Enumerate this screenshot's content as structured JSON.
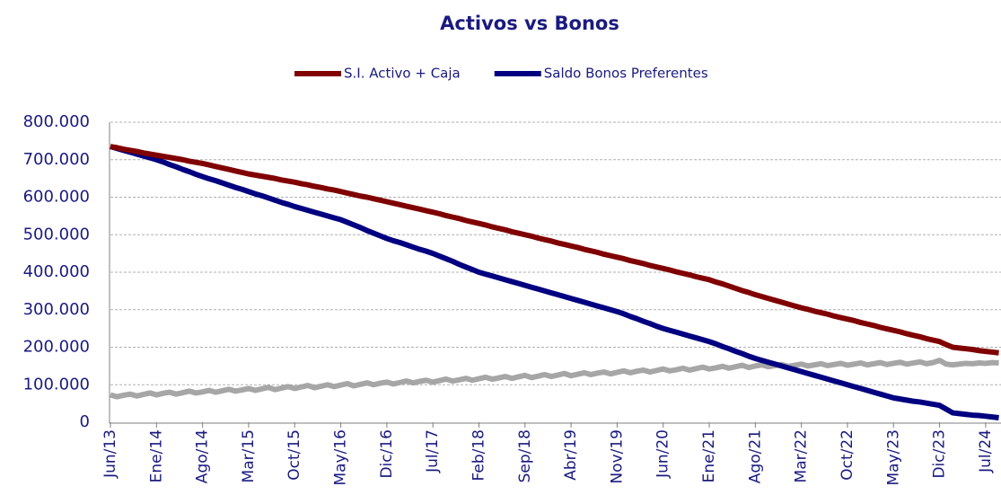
{
  "chart_data": {
    "type": "line",
    "title": "Activos vs Bonos",
    "categories": [
      "Jun/13",
      null,
      null,
      null,
      null,
      null,
      null,
      "Ene/14",
      null,
      null,
      null,
      null,
      null,
      null,
      "Ago/14",
      null,
      null,
      null,
      null,
      null,
      null,
      "Mar/15",
      null,
      null,
      null,
      null,
      null,
      null,
      "Oct/15",
      null,
      null,
      null,
      null,
      null,
      null,
      "May/16",
      null,
      null,
      null,
      null,
      null,
      null,
      "Dic/16",
      null,
      null,
      null,
      null,
      null,
      null,
      "Jul/17",
      null,
      null,
      null,
      null,
      null,
      null,
      "Feb/18",
      null,
      null,
      null,
      null,
      null,
      null,
      "Sep/18",
      null,
      null,
      null,
      null,
      null,
      null,
      "Abr/19",
      null,
      null,
      null,
      null,
      null,
      null,
      "Nov/19",
      null,
      null,
      null,
      null,
      null,
      null,
      "Jun/20",
      null,
      null,
      null,
      null,
      null,
      null,
      "Ene/21",
      null,
      null,
      null,
      null,
      null,
      null,
      "Ago/21",
      null,
      null,
      null,
      null,
      null,
      null,
      "Mar/22",
      null,
      null,
      null,
      null,
      null,
      null,
      "Oct/22",
      null,
      null,
      null,
      null,
      null,
      null,
      "May/23",
      null,
      null,
      null,
      null,
      null,
      null,
      "Dic/23",
      null,
      null,
      null,
      null,
      null,
      null,
      "Jul/24",
      null,
      null
    ],
    "series": [
      {
        "name": "S.I. Activo + Caja",
        "color": "#800000",
        "values": [
          735000,
          732000,
          728000,
          725000,
          722000,
          718000,
          715000,
          712000,
          709000,
          706000,
          703000,
          700000,
          696000,
          693000,
          690000,
          686000,
          682000,
          678000,
          674000,
          670000,
          666000,
          662000,
          659000,
          656000,
          653000,
          650000,
          646000,
          643000,
          640000,
          636000,
          633000,
          629000,
          626000,
          622000,
          619000,
          615000,
          611000,
          607000,
          603000,
          600000,
          596000,
          592000,
          588000,
          584000,
          580000,
          576000,
          572000,
          568000,
          564000,
          560000,
          556000,
          551000,
          547000,
          543000,
          538000,
          534000,
          530000,
          526000,
          521000,
          517000,
          513000,
          508000,
          504000,
          500000,
          496000,
          491000,
          487000,
          483000,
          478000,
          474000,
          470000,
          466000,
          461000,
          457000,
          453000,
          448000,
          444000,
          440000,
          436000,
          431000,
          427000,
          423000,
          418000,
          414000,
          410000,
          406000,
          401000,
          397000,
          393000,
          388000,
          384000,
          380000,
          374000,
          369000,
          363000,
          357000,
          351000,
          346000,
          340000,
          335000,
          330000,
          325000,
          320000,
          315000,
          310000,
          305000,
          301000,
          296000,
          292000,
          288000,
          283000,
          279000,
          275000,
          271000,
          266000,
          262000,
          258000,
          253000,
          249000,
          245000,
          241000,
          236000,
          232000,
          228000,
          223000,
          219000,
          215000,
          207000,
          200000,
          198000,
          196000,
          194000,
          191000,
          189000,
          187000,
          185000
        ]
      },
      {
        "name": "Saldo Bonos Preferentes",
        "color": "#000080",
        "values": [
          735000,
          730000,
          725000,
          720000,
          715000,
          710000,
          705000,
          700000,
          694000,
          687000,
          681000,
          674000,
          668000,
          661000,
          655000,
          649000,
          644000,
          638000,
          632000,
          626000,
          621000,
          615000,
          609000,
          604000,
          598000,
          592000,
          586000,
          581000,
          575000,
          570000,
          565000,
          560000,
          555000,
          550000,
          545000,
          540000,
          533000,
          526000,
          519000,
          511000,
          504000,
          497000,
          490000,
          484000,
          479000,
          473000,
          467000,
          461000,
          456000,
          450000,
          443000,
          436000,
          429000,
          421000,
          414000,
          407000,
          400000,
          395000,
          390000,
          385000,
          380000,
          375000,
          370000,
          365000,
          360000,
          355000,
          350000,
          345000,
          340000,
          335000,
          330000,
          325000,
          320000,
          315000,
          310000,
          305000,
          300000,
          295000,
          289000,
          282000,
          276000,
          269000,
          263000,
          256000,
          250000,
          245000,
          240000,
          235000,
          230000,
          225000,
          220000,
          215000,
          209000,
          202000,
          196000,
          189000,
          183000,
          176000,
          170000,
          165000,
          160000,
          155000,
          150000,
          145000,
          140000,
          135000,
          130000,
          125000,
          120000,
          115000,
          110000,
          105000,
          100000,
          95000,
          90000,
          85000,
          80000,
          75000,
          70000,
          65000,
          62000,
          59000,
          56000,
          54000,
          51000,
          48000,
          45000,
          35000,
          25000,
          23000,
          21000,
          19000,
          18000,
          16000,
          14000,
          12000
        ]
      },
      {
        "color": "#a6a6a6",
        "values": [
          73000,
          68000,
          72000,
          75000,
          70000,
          74000,
          78000,
          73000,
          77000,
          80000,
          75000,
          79000,
          83000,
          78000,
          81000,
          85000,
          80000,
          84000,
          88000,
          83000,
          86000,
          90000,
          85000,
          89000,
          93000,
          87000,
          91000,
          95000,
          90000,
          94000,
          98000,
          92000,
          96000,
          100000,
          95000,
          99000,
          103000,
          97000,
          101000,
          105000,
          100000,
          104000,
          107000,
          102000,
          106000,
          110000,
          105000,
          109000,
          112000,
          107000,
          111000,
          115000,
          110000,
          113000,
          117000,
          112000,
          116000,
          120000,
          115000,
          118000,
          122000,
          117000,
          121000,
          125000,
          119000,
          123000,
          127000,
          122000,
          126000,
          130000,
          124000,
          128000,
          132000,
          127000,
          131000,
          134000,
          129000,
          133000,
          137000,
          132000,
          136000,
          139000,
          134000,
          138000,
          142000,
          137000,
          140000,
          144000,
          139000,
          143000,
          147000,
          142000,
          145000,
          149000,
          144000,
          148000,
          152000,
          146000,
          150000,
          153000,
          148000,
          151000,
          154000,
          149000,
          152000,
          155000,
          150000,
          153000,
          156000,
          151000,
          154000,
          157000,
          152000,
          155000,
          158000,
          153000,
          156000,
          159000,
          154000,
          157000,
          160000,
          155000,
          158000,
          161000,
          156000,
          159000,
          165000,
          155000,
          153000,
          155000,
          157000,
          156000,
          158000,
          157000,
          159000,
          158000
        ]
      }
    ],
    "ylim": [
      0,
      800000
    ],
    "yticks": [
      0,
      {
        "value": 100000,
        "label": "100.000"
      },
      {
        "value": 200000,
        "label": "200.000"
      },
      {
        "value": 300000,
        "label": "300.000"
      },
      {
        "value": 400000,
        "label": "400.000"
      },
      {
        "value": 500000,
        "label": "500.000"
      },
      {
        "value": 600000,
        "label": "600.000"
      },
      {
        "value": 700000,
        "label": "700.000"
      },
      {
        "value": 800000,
        "label": "800.000"
      }
    ],
    "grid": true,
    "legend": "top"
  }
}
